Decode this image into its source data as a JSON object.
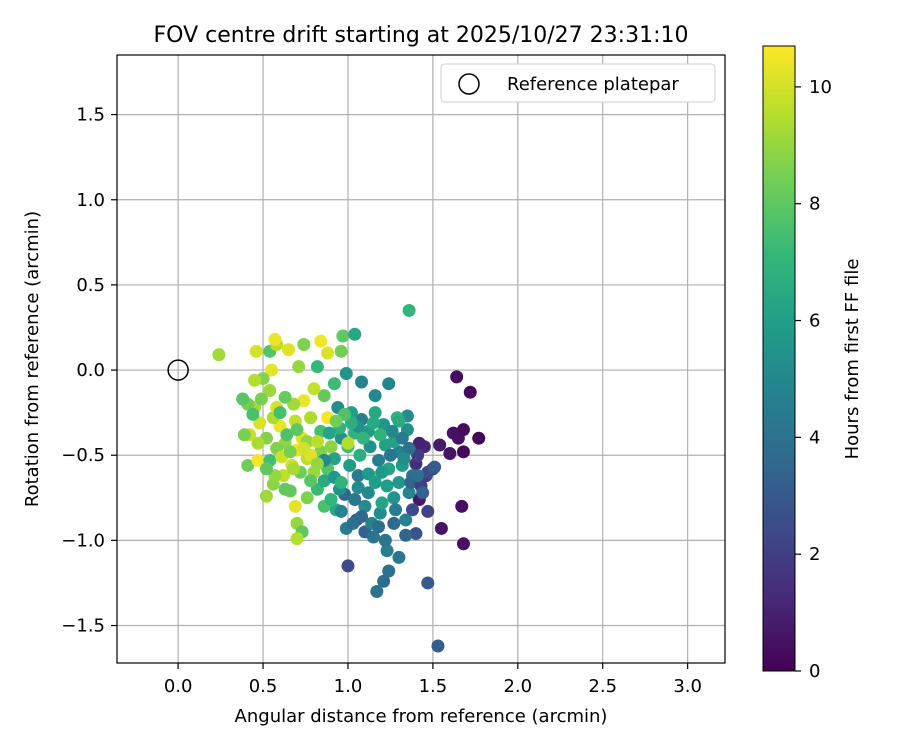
{
  "chart_data": {
    "type": "scatter",
    "title": "FOV centre drift starting at 2025/10/27 23:31:10",
    "xlabel": "Angular distance from reference (arcmin)",
    "ylabel": "Rotation from reference (arcmin)",
    "xlim": [
      -0.36,
      3.22
    ],
    "ylim": [
      -1.72,
      1.85
    ],
    "xticks": [
      0.0,
      0.5,
      1.0,
      1.5,
      2.0,
      2.5,
      3.0
    ],
    "xtick_labels": [
      "0.0",
      "0.5",
      "1.0",
      "1.5",
      "2.0",
      "2.5",
      "3.0"
    ],
    "yticks": [
      -1.5,
      -1.0,
      -0.5,
      0.0,
      0.5,
      1.0,
      1.5
    ],
    "ytick_labels": [
      "−1.5",
      "−1.0",
      "−0.5",
      "0.0",
      "0.5",
      "1.0",
      "1.5"
    ],
    "grid": true,
    "legend": {
      "position": "top-right",
      "entries": [
        "Reference platepar"
      ]
    },
    "reference_point": {
      "x": 0.0,
      "y": 0.0,
      "label": "Reference platepar"
    },
    "colorbar": {
      "label": "Hours from first FF file",
      "range": [
        0,
        10.7
      ],
      "ticks": [
        0,
        2,
        4,
        6,
        8,
        10
      ],
      "tick_labels": [
        "0",
        "2",
        "4",
        "6",
        "8",
        "10"
      ],
      "colormap": "viridis"
    },
    "points": [
      {
        "x": 1.64,
        "y": -0.04,
        "h": 0.3
      },
      {
        "x": 1.72,
        "y": -0.13,
        "h": 0.2
      },
      {
        "x": 1.77,
        "y": -0.4,
        "h": 0.1
      },
      {
        "x": 1.65,
        "y": -0.4,
        "h": 0.4
      },
      {
        "x": 1.62,
        "y": -0.37,
        "h": 0.5
      },
      {
        "x": 1.68,
        "y": -0.35,
        "h": 0.3
      },
      {
        "x": 1.6,
        "y": -0.49,
        "h": 0.6
      },
      {
        "x": 1.68,
        "y": -0.48,
        "h": 0.2
      },
      {
        "x": 1.54,
        "y": -0.44,
        "h": 0.8
      },
      {
        "x": 1.45,
        "y": -0.45,
        "h": 1.2
      },
      {
        "x": 1.42,
        "y": -0.43,
        "h": 1.0
      },
      {
        "x": 1.4,
        "y": -0.55,
        "h": 1.4
      },
      {
        "x": 1.5,
        "y": -0.58,
        "h": 1.5
      },
      {
        "x": 1.46,
        "y": -0.62,
        "h": 1.8
      },
      {
        "x": 1.42,
        "y": -0.76,
        "h": 0.7
      },
      {
        "x": 1.67,
        "y": -0.8,
        "h": 0.4
      },
      {
        "x": 1.55,
        "y": -0.93,
        "h": 0.6
      },
      {
        "x": 1.68,
        "y": -1.02,
        "h": 0.5
      },
      {
        "x": 1.47,
        "y": -0.83,
        "h": 2.2
      },
      {
        "x": 1.38,
        "y": -0.82,
        "h": 2.5
      },
      {
        "x": 1.4,
        "y": -0.96,
        "h": 2.8
      },
      {
        "x": 1.47,
        "y": -1.25,
        "h": 3.0
      },
      {
        "x": 1.53,
        "y": -1.62,
        "h": 3.2
      },
      {
        "x": 1.0,
        "y": -1.15,
        "h": 2.4
      },
      {
        "x": 1.17,
        "y": -1.3,
        "h": 4.1
      },
      {
        "x": 1.21,
        "y": -1.24,
        "h": 3.8
      },
      {
        "x": 1.24,
        "y": -1.18,
        "h": 4.0
      },
      {
        "x": 1.3,
        "y": -1.1,
        "h": 4.3
      },
      {
        "x": 1.23,
        "y": -1.06,
        "h": 4.6
      },
      {
        "x": 1.22,
        "y": -1.0,
        "h": 4.2
      },
      {
        "x": 1.27,
        "y": -0.9,
        "h": 3.6
      },
      {
        "x": 1.34,
        "y": -0.97,
        "h": 3.4
      },
      {
        "x": 1.1,
        "y": -0.95,
        "h": 3.3
      },
      {
        "x": 1.05,
        "y": -0.88,
        "h": 2.9
      },
      {
        "x": 0.99,
        "y": -0.93,
        "h": 4.5
      },
      {
        "x": 1.14,
        "y": -0.9,
        "h": 4.8
      },
      {
        "x": 1.19,
        "y": -0.84,
        "h": 5.2
      },
      {
        "x": 1.12,
        "y": -0.72,
        "h": 5.0
      },
      {
        "x": 0.98,
        "y": -0.73,
        "h": 3.7
      },
      {
        "x": 0.93,
        "y": -0.82,
        "h": 6.5
      },
      {
        "x": 0.95,
        "y": -0.7,
        "h": 5.5
      },
      {
        "x": 1.06,
        "y": -0.62,
        "h": 4.4
      },
      {
        "x": 1.16,
        "y": -0.63,
        "h": 8.2
      },
      {
        "x": 1.23,
        "y": -0.68,
        "h": 6.0
      },
      {
        "x": 1.3,
        "y": -0.66,
        "h": 5.7
      },
      {
        "x": 1.36,
        "y": -0.72,
        "h": 4.9
      },
      {
        "x": 1.38,
        "y": -0.62,
        "h": 4.2
      },
      {
        "x": 1.32,
        "y": -0.56,
        "h": 5.8
      },
      {
        "x": 1.3,
        "y": -0.48,
        "h": 4.7
      },
      {
        "x": 1.27,
        "y": -0.42,
        "h": 6.1
      },
      {
        "x": 1.35,
        "y": -0.35,
        "h": 5.3
      },
      {
        "x": 1.35,
        "y": -0.27,
        "h": 5.1
      },
      {
        "x": 1.29,
        "y": -0.28,
        "h": 6.8
      },
      {
        "x": 1.21,
        "y": -0.32,
        "h": 5.6
      },
      {
        "x": 1.16,
        "y": -0.25,
        "h": 6.4
      },
      {
        "x": 1.12,
        "y": -0.36,
        "h": 5.9
      },
      {
        "x": 1.08,
        "y": -0.29,
        "h": 4.6
      },
      {
        "x": 1.04,
        "y": -0.37,
        "h": 6.9
      },
      {
        "x": 1.0,
        "y": -0.45,
        "h": 7.4
      },
      {
        "x": 0.96,
        "y": -0.4,
        "h": 5.4
      },
      {
        "x": 0.92,
        "y": -0.52,
        "h": 6.2
      },
      {
        "x": 0.88,
        "y": -0.58,
        "h": 7.8
      },
      {
        "x": 0.84,
        "y": -0.48,
        "h": 8.6
      },
      {
        "x": 0.8,
        "y": -0.6,
        "h": 9.1
      },
      {
        "x": 0.76,
        "y": -0.52,
        "h": 9.6
      },
      {
        "x": 0.73,
        "y": -0.4,
        "h": 10.2
      },
      {
        "x": 0.7,
        "y": -0.47,
        "h": 10.5
      },
      {
        "x": 0.67,
        "y": -0.56,
        "h": 9.9
      },
      {
        "x": 0.63,
        "y": -0.43,
        "h": 8.9
      },
      {
        "x": 0.6,
        "y": -0.33,
        "h": 10.4
      },
      {
        "x": 0.56,
        "y": -0.28,
        "h": 9.4
      },
      {
        "x": 0.52,
        "y": -0.4,
        "h": 8.7
      },
      {
        "x": 0.48,
        "y": -0.31,
        "h": 10.1
      },
      {
        "x": 0.45,
        "y": -0.22,
        "h": 9.3
      },
      {
        "x": 0.41,
        "y": -0.2,
        "h": 8.4
      },
      {
        "x": 0.38,
        "y": -0.17,
        "h": 7.9
      },
      {
        "x": 0.42,
        "y": -0.38,
        "h": 9.8
      },
      {
        "x": 0.39,
        "y": -0.38,
        "h": 8.5
      },
      {
        "x": 0.41,
        "y": -0.56,
        "h": 8.3
      },
      {
        "x": 0.47,
        "y": -0.53,
        "h": 10.6
      },
      {
        "x": 0.52,
        "y": -0.74,
        "h": 9.2
      },
      {
        "x": 0.56,
        "y": -0.67,
        "h": 8.8
      },
      {
        "x": 0.62,
        "y": -0.62,
        "h": 9.7
      },
      {
        "x": 0.66,
        "y": -0.71,
        "h": 8.1
      },
      {
        "x": 0.69,
        "y": -0.8,
        "h": 10.3
      },
      {
        "x": 0.7,
        "y": -0.9,
        "h": 9.0
      },
      {
        "x": 0.73,
        "y": -0.95,
        "h": 8.0
      },
      {
        "x": 0.7,
        "y": -0.99,
        "h": 9.5
      },
      {
        "x": 0.76,
        "y": -0.75,
        "h": 8.6
      },
      {
        "x": 0.82,
        "y": -0.7,
        "h": 7.2
      },
      {
        "x": 0.86,
        "y": -0.8,
        "h": 7.6
      },
      {
        "x": 0.9,
        "y": -0.76,
        "h": 7.0
      },
      {
        "x": 0.24,
        "y": 0.09,
        "h": 9.2
      },
      {
        "x": 0.46,
        "y": 0.11,
        "h": 10.0
      },
      {
        "x": 0.54,
        "y": 0.11,
        "h": 7.8
      },
      {
        "x": 0.58,
        "y": 0.15,
        "h": 9.6
      },
      {
        "x": 0.57,
        "y": 0.18,
        "h": 10.4
      },
      {
        "x": 0.65,
        "y": 0.12,
        "h": 10.2
      },
      {
        "x": 0.74,
        "y": 0.15,
        "h": 8.6
      },
      {
        "x": 0.84,
        "y": 0.17,
        "h": 10.5
      },
      {
        "x": 0.88,
        "y": 0.1,
        "h": 10.1
      },
      {
        "x": 0.97,
        "y": 0.2,
        "h": 8.0
      },
      {
        "x": 1.04,
        "y": 0.21,
        "h": 6.4
      },
      {
        "x": 0.96,
        "y": 0.11,
        "h": 8.4
      },
      {
        "x": 0.82,
        "y": 0.02,
        "h": 7.1
      },
      {
        "x": 0.71,
        "y": 0.02,
        "h": 9.0
      },
      {
        "x": 0.55,
        "y": 0.0,
        "h": 10.3
      },
      {
        "x": 0.5,
        "y": -0.05,
        "h": 8.7
      },
      {
        "x": 0.45,
        "y": -0.06,
        "h": 9.5
      },
      {
        "x": 1.36,
        "y": 0.35,
        "h": 7.0
      },
      {
        "x": 0.99,
        "y": -0.02,
        "h": 5.5
      },
      {
        "x": 1.08,
        "y": -0.07,
        "h": 4.8
      },
      {
        "x": 1.16,
        "y": -0.15,
        "h": 5.0
      },
      {
        "x": 1.24,
        "y": -0.08,
        "h": 4.9
      },
      {
        "x": 0.92,
        "y": -0.08,
        "h": 7.3
      },
      {
        "x": 0.86,
        "y": -0.15,
        "h": 8.1
      },
      {
        "x": 0.8,
        "y": -0.11,
        "h": 9.8
      },
      {
        "x": 0.74,
        "y": -0.18,
        "h": 10.4
      },
      {
        "x": 0.68,
        "y": -0.2,
        "h": 9.2
      },
      {
        "x": 0.63,
        "y": -0.16,
        "h": 8.2
      },
      {
        "x": 0.58,
        "y": -0.22,
        "h": 10.0
      },
      {
        "x": 0.54,
        "y": -0.12,
        "h": 9.1
      },
      {
        "x": 0.49,
        "y": -0.17,
        "h": 8.5
      },
      {
        "x": 0.44,
        "y": -0.26,
        "h": 7.6
      },
      {
        "x": 0.78,
        "y": -0.28,
        "h": 9.4
      },
      {
        "x": 0.88,
        "y": -0.28,
        "h": 10.6
      },
      {
        "x": 0.95,
        "y": -0.34,
        "h": 6.8
      },
      {
        "x": 1.02,
        "y": -0.25,
        "h": 6.0
      },
      {
        "x": 0.94,
        "y": -0.22,
        "h": 5.2
      },
      {
        "x": 0.84,
        "y": -0.36,
        "h": 7.5
      },
      {
        "x": 0.76,
        "y": -0.42,
        "h": 8.9
      },
      {
        "x": 0.69,
        "y": -0.3,
        "h": 9.7
      },
      {
        "x": 0.64,
        "y": -0.38,
        "h": 7.7
      },
      {
        "x": 0.58,
        "y": -0.46,
        "h": 8.6
      },
      {
        "x": 0.54,
        "y": -0.53,
        "h": 7.4
      },
      {
        "x": 0.61,
        "y": -0.51,
        "h": 9.9
      },
      {
        "x": 0.72,
        "y": -0.6,
        "h": 8.3
      },
      {
        "x": 0.78,
        "y": -0.65,
        "h": 7.9
      },
      {
        "x": 0.86,
        "y": -0.65,
        "h": 6.6
      },
      {
        "x": 0.92,
        "y": -0.63,
        "h": 5.6
      },
      {
        "x": 1.01,
        "y": -0.56,
        "h": 5.9
      },
      {
        "x": 1.07,
        "y": -0.5,
        "h": 6.7
      },
      {
        "x": 1.13,
        "y": -0.45,
        "h": 5.3
      },
      {
        "x": 1.18,
        "y": -0.53,
        "h": 4.6
      },
      {
        "x": 1.24,
        "y": -0.58,
        "h": 6.3
      },
      {
        "x": 1.27,
        "y": -0.75,
        "h": 5.5
      },
      {
        "x": 1.2,
        "y": -0.78,
        "h": 6.2
      },
      {
        "x": 1.1,
        "y": -0.8,
        "h": 5.1
      },
      {
        "x": 1.04,
        "y": -0.76,
        "h": 4.3
      },
      {
        "x": 0.96,
        "y": -0.66,
        "h": 6.9
      },
      {
        "x": 0.9,
        "y": -0.45,
        "h": 8.8
      },
      {
        "x": 0.82,
        "y": -0.42,
        "h": 9.6
      },
      {
        "x": 0.78,
        "y": -0.5,
        "h": 10.2
      },
      {
        "x": 0.68,
        "y": -0.58,
        "h": 9.3
      },
      {
        "x": 0.63,
        "y": -0.7,
        "h": 8.1
      },
      {
        "x": 0.57,
        "y": -0.62,
        "h": 9.0
      },
      {
        "x": 0.52,
        "y": -0.58,
        "h": 8.0
      },
      {
        "x": 0.47,
        "y": -0.43,
        "h": 9.4
      },
      {
        "x": 0.6,
        "y": -0.25,
        "h": 7.5
      },
      {
        "x": 0.7,
        "y": -0.35,
        "h": 8.0
      },
      {
        "x": 1.0,
        "y": -0.43,
        "h": 9.5
      },
      {
        "x": 1.06,
        "y": -0.69,
        "h": 5.2
      },
      {
        "x": 1.15,
        "y": -0.98,
        "h": 4.1
      },
      {
        "x": 1.12,
        "y": -0.61,
        "h": 5.8
      },
      {
        "x": 1.37,
        "y": -0.66,
        "h": 3.5
      },
      {
        "x": 1.43,
        "y": -0.68,
        "h": 2.0
      },
      {
        "x": 1.47,
        "y": -0.6,
        "h": 2.6
      },
      {
        "x": 1.51,
        "y": -0.57,
        "h": 3.1
      },
      {
        "x": 1.41,
        "y": -0.5,
        "h": 1.9
      },
      {
        "x": 1.36,
        "y": -0.46,
        "h": 3.9
      },
      {
        "x": 1.32,
        "y": -0.4,
        "h": 4.4
      },
      {
        "x": 1.3,
        "y": -0.3,
        "h": 6.6
      },
      {
        "x": 1.26,
        "y": -0.36,
        "h": 5.0
      },
      {
        "x": 1.22,
        "y": -0.44,
        "h": 6.1
      },
      {
        "x": 1.19,
        "y": -0.38,
        "h": 6.9
      },
      {
        "x": 1.15,
        "y": -0.31,
        "h": 6.5
      },
      {
        "x": 1.09,
        "y": -0.4,
        "h": 7.0
      },
      {
        "x": 1.06,
        "y": -0.33,
        "h": 5.4
      },
      {
        "x": 1.02,
        "y": -0.31,
        "h": 6.7
      },
      {
        "x": 0.98,
        "y": -0.26,
        "h": 7.7
      },
      {
        "x": 0.93,
        "y": -0.3,
        "h": 8.4
      },
      {
        "x": 0.89,
        "y": -0.37,
        "h": 6.3
      },
      {
        "x": 0.86,
        "y": -0.53,
        "h": 5.0
      },
      {
        "x": 0.82,
        "y": -0.55,
        "h": 9.0
      },
      {
        "x": 0.74,
        "y": -0.46,
        "h": 10.0
      },
      {
        "x": 0.66,
        "y": -0.48,
        "h": 8.5
      },
      {
        "x": 1.16,
        "y": -0.66,
        "h": 6.0
      },
      {
        "x": 1.2,
        "y": -0.6,
        "h": 5.7
      },
      {
        "x": 1.25,
        "y": -0.5,
        "h": 4.2
      },
      {
        "x": 1.33,
        "y": -0.52,
        "h": 5.2
      },
      {
        "x": 1.41,
        "y": -0.62,
        "h": 4.0
      },
      {
        "x": 1.44,
        "y": -0.72,
        "h": 3.3
      },
      {
        "x": 1.28,
        "y": -0.82,
        "h": 4.5
      },
      {
        "x": 1.34,
        "y": -0.88,
        "h": 4.7
      },
      {
        "x": 1.18,
        "y": -0.92,
        "h": 3.9
      },
      {
        "x": 1.03,
        "y": -0.9,
        "h": 4.0
      },
      {
        "x": 0.96,
        "y": -0.83,
        "h": 4.9
      },
      {
        "x": 1.08,
        "y": -0.86,
        "h": 3.6
      }
    ]
  }
}
